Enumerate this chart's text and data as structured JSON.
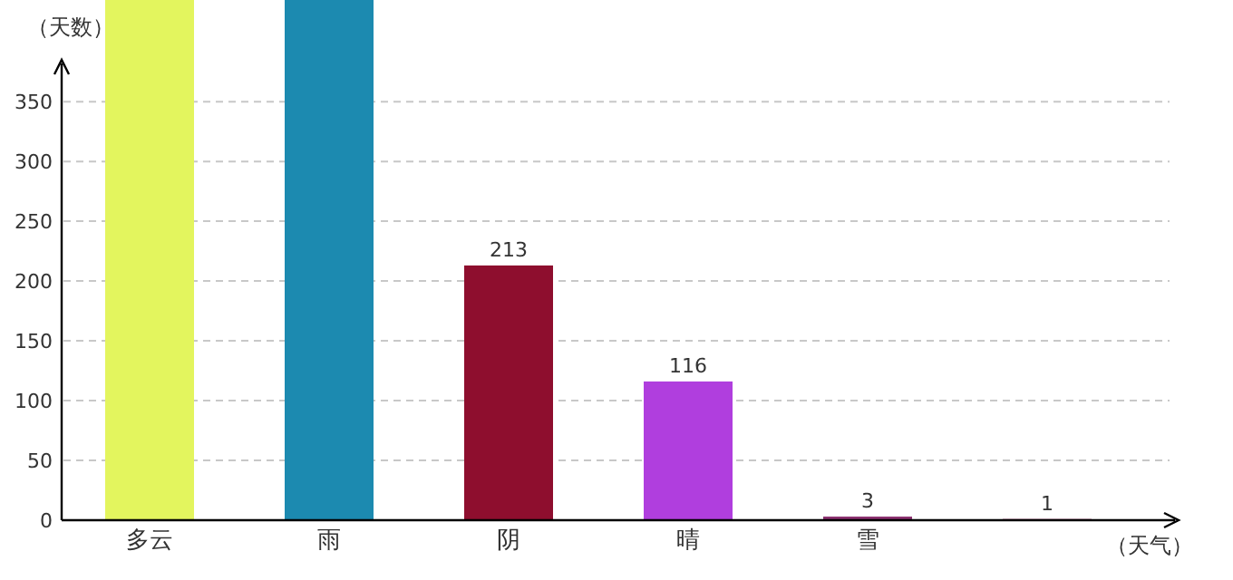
{
  "chart_data": {
    "type": "bar",
    "xlabel": "（天气）",
    "ylabel": "（天数）",
    "categories": [
      "多云",
      "雨",
      "阴",
      "晴",
      "雪",
      null
    ],
    "values": [
      435,
      435,
      213,
      116,
      3,
      1
    ],
    "colors": [
      "#e3f55e",
      "#1c8ab0",
      "#8e0e2e",
      "#b03ede",
      "#8a2f6e",
      "#9c3060"
    ],
    "value_labels": [
      null,
      null,
      "213",
      "116",
      "3",
      "1"
    ],
    "ylim": [
      0,
      435
    ],
    "yticks": [
      0,
      50,
      100,
      150,
      200,
      250,
      300,
      350
    ],
    "grid": "y"
  }
}
